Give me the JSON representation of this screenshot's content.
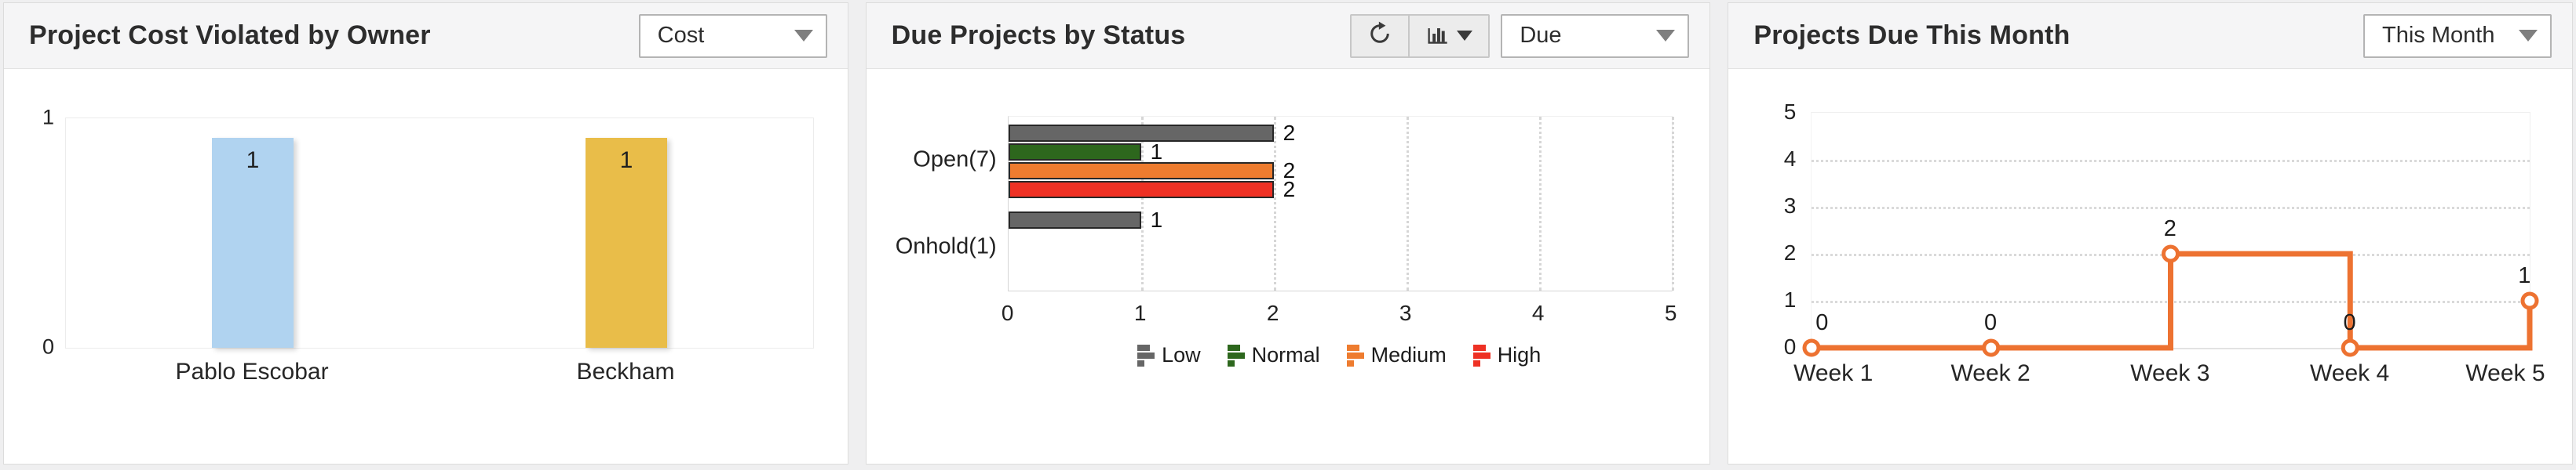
{
  "page": {
    "background": "#efeff0"
  },
  "panels": [
    {
      "title": "Project Cost Violated by Owner",
      "select": {
        "value": "Cost"
      },
      "chart_data": {
        "type": "bar",
        "categories": [
          "Pablo Escobar",
          "Beckham"
        ],
        "values": [
          1,
          1
        ],
        "value_labels": [
          "1",
          "1"
        ],
        "bar_colors": [
          "#b0d3f0",
          "#e9bd49"
        ],
        "ylim": [
          0,
          1
        ],
        "yticks": [
          0,
          1
        ],
        "grid": false
      }
    },
    {
      "title": "Due Projects by Status",
      "toolbar": {
        "buttons": [
          {
            "icon": "refresh-icon"
          },
          {
            "icon": "column-chart-icon",
            "has_caret": true
          }
        ]
      },
      "select": {
        "value": "Due"
      },
      "chart_data": {
        "type": "bar",
        "orientation": "horizontal-grouped",
        "categories": [
          "Open(7)",
          "Onhold(1)"
        ],
        "series": [
          {
            "name": "Low",
            "color": "#666666",
            "values": [
              2,
              1
            ]
          },
          {
            "name": "Normal",
            "color": "#2d671d",
            "values": [
              1,
              null
            ]
          },
          {
            "name": "Medium",
            "color": "#ee7c2f",
            "values": [
              2,
              null
            ]
          },
          {
            "name": "High",
            "color": "#ee3124",
            "values": [
              2,
              null
            ]
          }
        ],
        "xlim": [
          0,
          5
        ],
        "xticks": [
          0,
          1,
          2,
          3,
          4,
          5
        ],
        "grid": "dotted-vertical",
        "legend_position": "bottom"
      }
    },
    {
      "title": "Projects Due This Month",
      "select": {
        "value": "This Month"
      },
      "chart_data": {
        "type": "line",
        "line_style": "step",
        "x": [
          "Week 1",
          "Week 2",
          "Week 3",
          "Week 4",
          "Week 5"
        ],
        "values": [
          0,
          0,
          2,
          0,
          1
        ],
        "value_labels": [
          "0",
          "0",
          "2",
          "0",
          "1"
        ],
        "color": "#ed7231",
        "marker": "open-circle",
        "ylim": [
          0,
          5
        ],
        "yticks": [
          0,
          1,
          2,
          3,
          4,
          5
        ],
        "grid": "dotted-horizontal"
      }
    }
  ]
}
